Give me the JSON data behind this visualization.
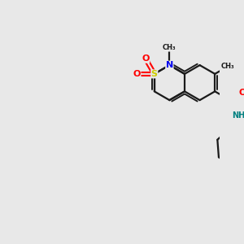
{
  "background_color": "#e8e8e8",
  "bond_color": "#1a1a1a",
  "atom_colors": {
    "O": "#ff0000",
    "N": "#0000ee",
    "S": "#cccc00",
    "NH": "#008080",
    "C": "#1a1a1a"
  },
  "figsize": [
    3.0,
    3.0
  ],
  "dpi": 100,
  "xlim": [
    0,
    10
  ],
  "ylim": [
    0,
    10
  ]
}
